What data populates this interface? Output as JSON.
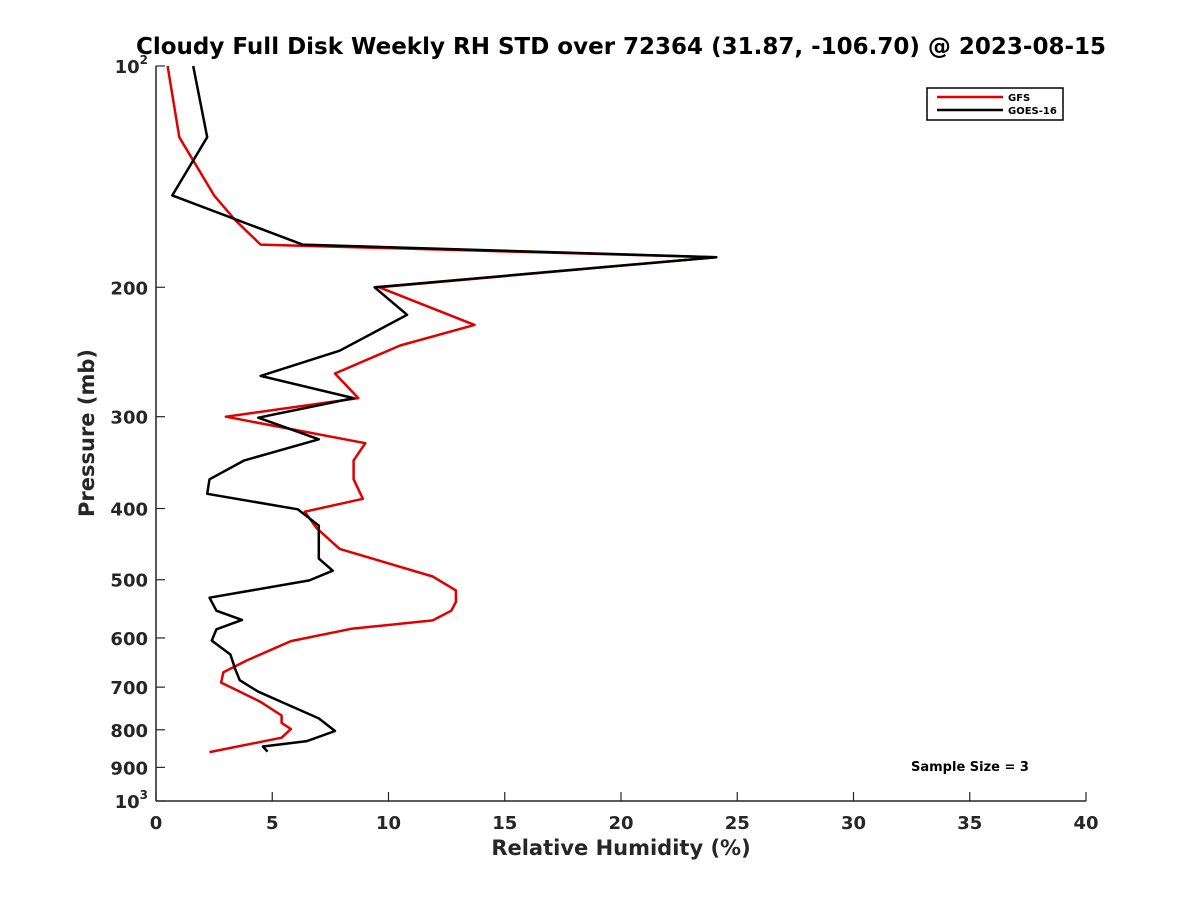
{
  "chart_data": {
    "type": "line",
    "title": "Cloudy Full Disk Weekly RH STD over 72364 (31.87, -106.70) @ 2023-08-15",
    "xlabel": "Relative Humidity (%)",
    "ylabel": "Pressure (mb)",
    "xlim": [
      0,
      40
    ],
    "ylim": [
      100,
      1000
    ],
    "y_scale": "log",
    "y_inverted": true,
    "grid": false,
    "legend_position": "top-right",
    "x_ticks": [
      0,
      5,
      10,
      15,
      20,
      25,
      30,
      35,
      40
    ],
    "x_tick_labels": [
      "0",
      "5",
      "10",
      "15",
      "20",
      "25",
      "30",
      "35",
      "40"
    ],
    "y_ticks": [
      {
        "value": 100,
        "base": "10",
        "exp": "2"
      },
      {
        "value": 200,
        "base": "200",
        "exp": ""
      },
      {
        "value": 300,
        "base": "300",
        "exp": ""
      },
      {
        "value": 400,
        "base": "400",
        "exp": ""
      },
      {
        "value": 500,
        "base": "500",
        "exp": ""
      },
      {
        "value": 600,
        "base": "600",
        "exp": ""
      },
      {
        "value": 700,
        "base": "700",
        "exp": ""
      },
      {
        "value": 800,
        "base": "800",
        "exp": ""
      },
      {
        "value": 900,
        "base": "900",
        "exp": ""
      },
      {
        "value": 1000,
        "base": "10",
        "exp": "3"
      }
    ],
    "series": [
      {
        "name": "GFS",
        "color": "#e00000",
        "points": [
          [
            0.5,
            100
          ],
          [
            1.0,
            125
          ],
          [
            2.5,
            150
          ],
          [
            3.4,
            162
          ],
          [
            4.5,
            175
          ],
          [
            24.1,
            182
          ],
          [
            9.6,
            200
          ],
          [
            13.7,
            225
          ],
          [
            10.5,
            240
          ],
          [
            7.7,
            262
          ],
          [
            8.7,
            283
          ],
          [
            3.0,
            300
          ],
          [
            9.0,
            326
          ],
          [
            8.5,
            344
          ],
          [
            8.5,
            365
          ],
          [
            8.9,
            388
          ],
          [
            6.4,
            404
          ],
          [
            6.9,
            425
          ],
          [
            7.9,
            454
          ],
          [
            11.9,
            495
          ],
          [
            12.9,
            517
          ],
          [
            12.9,
            536
          ],
          [
            12.7,
            551
          ],
          [
            11.9,
            568
          ],
          [
            8.4,
            583
          ],
          [
            5.8,
            606
          ],
          [
            3.9,
            644
          ],
          [
            2.9,
            668
          ],
          [
            2.8,
            690
          ],
          [
            3.4,
            705
          ],
          [
            4.5,
            733
          ],
          [
            5.4,
            765
          ],
          [
            5.4,
            783
          ],
          [
            5.8,
            798
          ],
          [
            5.4,
            820
          ],
          [
            2.3,
            858
          ]
        ]
      },
      {
        "name": "GOES-16",
        "color": "#000000",
        "points": [
          [
            1.6,
            100
          ],
          [
            2.2,
            125
          ],
          [
            0.7,
            150
          ],
          [
            6.3,
            175
          ],
          [
            24.1,
            182
          ],
          [
            9.4,
            200
          ],
          [
            10.8,
            218
          ],
          [
            7.9,
            244
          ],
          [
            4.5,
            264
          ],
          [
            8.5,
            283
          ],
          [
            4.4,
            301
          ],
          [
            7.0,
            322
          ],
          [
            3.8,
            344
          ],
          [
            2.3,
            365
          ],
          [
            2.2,
            382
          ],
          [
            6.1,
            401
          ],
          [
            7.0,
            422
          ],
          [
            7.0,
            468
          ],
          [
            7.6,
            486
          ],
          [
            6.6,
            501
          ],
          [
            2.3,
            529
          ],
          [
            2.6,
            551
          ],
          [
            3.7,
            567
          ],
          [
            2.6,
            584
          ],
          [
            2.4,
            605
          ],
          [
            3.2,
            632
          ],
          [
            3.4,
            661
          ],
          [
            3.6,
            685
          ],
          [
            4.4,
            710
          ],
          [
            5.6,
            738
          ],
          [
            7.0,
            772
          ],
          [
            7.7,
            803
          ],
          [
            6.5,
            829
          ],
          [
            4.6,
            843
          ],
          [
            4.8,
            857
          ]
        ]
      }
    ],
    "annotations": [
      {
        "text": "Sample Size = 3",
        "position": "bottom-right"
      }
    ]
  }
}
